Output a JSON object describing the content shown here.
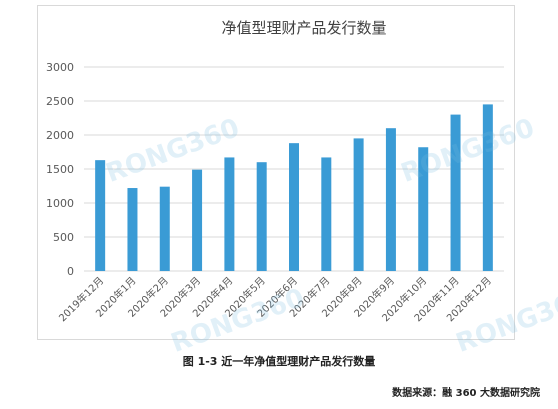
{
  "chart_data": {
    "type": "bar",
    "title": "净值型理财产品发行数量",
    "categories": [
      "2019年12月",
      "2020年1月",
      "2020年2月",
      "2020年3月",
      "2020年4月",
      "2020年5月",
      "2020年6月",
      "2020年7月",
      "2020年8月",
      "2020年9月",
      "2020年10月",
      "2020年11月",
      "2020年12月"
    ],
    "values": [
      1630,
      1220,
      1240,
      1490,
      1670,
      1600,
      1880,
      1670,
      1950,
      2100,
      1820,
      2300,
      2450
    ],
    "ylim": [
      0,
      3000
    ],
    "yticks": [
      0,
      500,
      1000,
      1500,
      2000,
      2500,
      3000
    ],
    "grid": true,
    "bar_color": "#3a9bd5",
    "grid_color": "#d9d9d9"
  },
  "watermark": "RONG360",
  "caption": "图 1-3  近一年净值型理财产品发行数量",
  "source": "数据来源：融 360 大数据研究院"
}
